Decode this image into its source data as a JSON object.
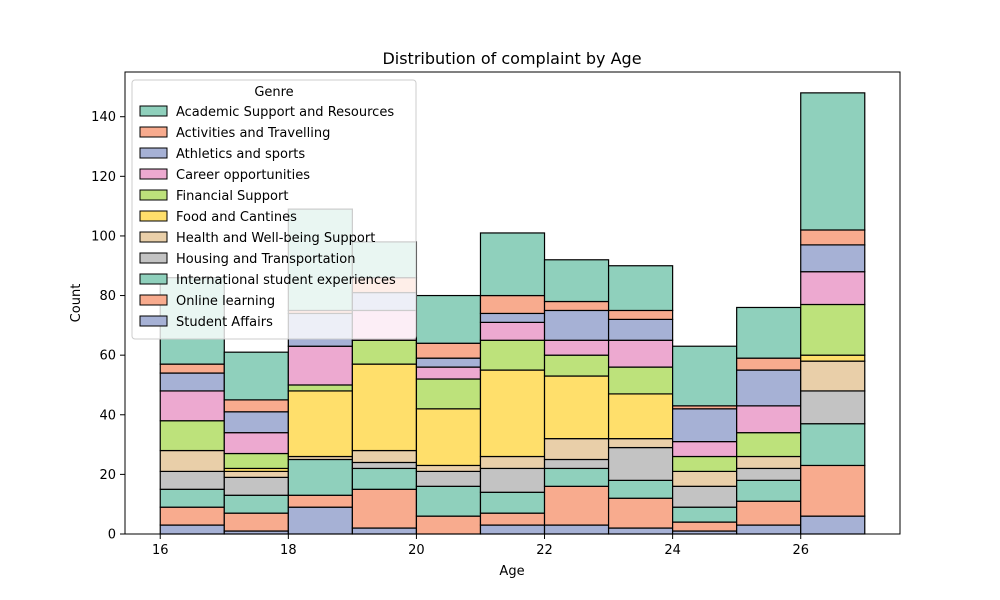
{
  "chart_data": {
    "type": "bar",
    "stacked": true,
    "title": "Distribution of complaint by Age",
    "xlabel": "Age",
    "ylabel": "Count",
    "xlim": [
      15.45,
      27.55
    ],
    "ylim": [
      0,
      155
    ],
    "xticks": [
      16,
      18,
      20,
      22,
      24,
      26
    ],
    "yticks": [
      0,
      20,
      40,
      60,
      80,
      100,
      120,
      140
    ],
    "grid": false,
    "legend": {
      "title": "Genre",
      "placement": "top-left"
    },
    "bins": [
      {
        "x0": 16.0,
        "x1": 17.0
      },
      {
        "x0": 17.0,
        "x1": 18.0
      },
      {
        "x0": 18.0,
        "x1": 19.0
      },
      {
        "x0": 19.0,
        "x1": 20.0
      },
      {
        "x0": 20.0,
        "x1": 21.0
      },
      {
        "x0": 21.0,
        "x1": 22.0
      },
      {
        "x0": 22.0,
        "x1": 23.0
      },
      {
        "x0": 23.0,
        "x1": 24.0
      },
      {
        "x0": 24.0,
        "x1": 25.0
      },
      {
        "x0": 25.0,
        "x1": 26.0
      },
      {
        "x0": 26.0,
        "x1": 27.0
      }
    ],
    "series": [
      {
        "name": "Student Affairs",
        "color": "#a6b1d5",
        "values": [
          3,
          1,
          9,
          2,
          0,
          3,
          3,
          2,
          1,
          3,
          6
        ]
      },
      {
        "name": "Online learning",
        "color": "#f8ab8e",
        "values": [
          6,
          6,
          4,
          13,
          6,
          4,
          13,
          10,
          3,
          8,
          17
        ]
      },
      {
        "name": "International student experiences",
        "color": "#8fd0bc",
        "values": [
          6,
          6,
          12,
          7,
          10,
          7,
          6,
          6,
          5,
          7,
          14
        ]
      },
      {
        "name": "Housing and Transportation",
        "color": "#c3c3c3",
        "values": [
          6,
          6,
          0,
          2,
          5,
          8,
          3,
          11,
          7,
          4,
          11
        ]
      },
      {
        "name": "Health and Well-being Support",
        "color": "#e9cfa9",
        "values": [
          7,
          2,
          1,
          4,
          2,
          4,
          7,
          3,
          5,
          4,
          10
        ]
      },
      {
        "name": "Food and Cantines",
        "color": "#ffdf6b",
        "values": [
          0,
          1,
          22,
          29,
          19,
          29,
          21,
          15,
          0,
          0,
          2
        ]
      },
      {
        "name": "Financial Support",
        "color": "#bde27b",
        "values": [
          10,
          5,
          2,
          8,
          10,
          10,
          7,
          9,
          5,
          8,
          17
        ]
      },
      {
        "name": "Career opportunities",
        "color": "#eda9d0",
        "values": [
          10,
          7,
          13,
          10,
          4,
          6,
          5,
          9,
          5,
          9,
          11
        ]
      },
      {
        "name": "Athletics and sports",
        "color": "#a6b1d5",
        "values": [
          6,
          7,
          11,
          6,
          3,
          3,
          10,
          7,
          11,
          12,
          9
        ]
      },
      {
        "name": "Activities and Travelling",
        "color": "#f8ab8e",
        "values": [
          3,
          4,
          1,
          5,
          5,
          6,
          3,
          3,
          1,
          4,
          5
        ]
      },
      {
        "name": "Academic Support and Resources",
        "color": "#8fd0bc",
        "values": [
          29,
          16,
          34,
          12,
          16,
          21,
          14,
          15,
          20,
          17,
          46
        ]
      }
    ],
    "legend_order": [
      "Academic Support and Resources",
      "Activities and Travelling",
      "Athletics and sports",
      "Career opportunities",
      "Financial Support",
      "Food and Cantines",
      "Health and Well-being Support",
      "Housing and Transportation",
      "International student experiences",
      "Online learning",
      "Student Affairs"
    ]
  }
}
